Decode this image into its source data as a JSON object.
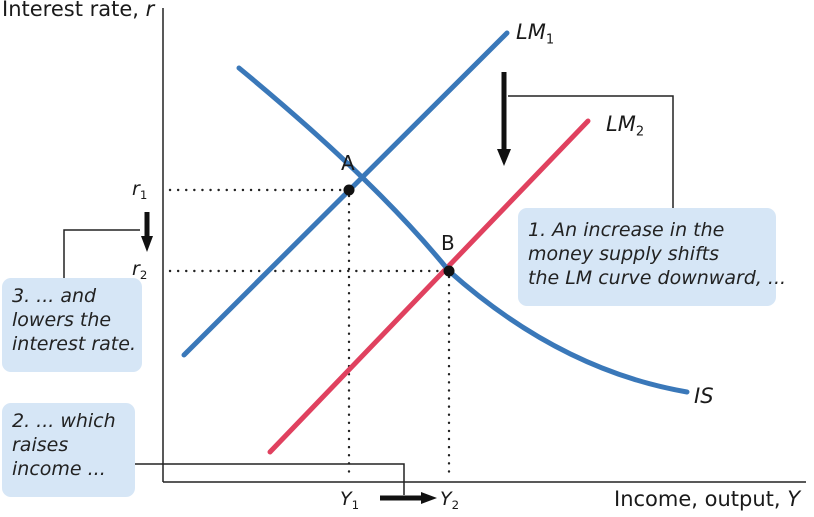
{
  "axes": {
    "y_title": "Interest rate,",
    "y_var": "r",
    "x_title": "Income, output,",
    "x_var": "Y"
  },
  "curves": {
    "lm1": {
      "base": "LM",
      "sub": "1",
      "color": "#3a78b9"
    },
    "lm2": {
      "base": "LM",
      "sub": "2",
      "color": "#e0415f"
    },
    "is": {
      "label": "IS",
      "color": "#3a78b9"
    }
  },
  "points": {
    "a": "A",
    "b": "B"
  },
  "ticks": {
    "r1": {
      "base": "r",
      "sub": "1"
    },
    "r2": {
      "base": "r",
      "sub": "2"
    },
    "y1": {
      "base": "Y",
      "sub": "1"
    },
    "y2": {
      "base": "Y",
      "sub": "2"
    }
  },
  "notes": {
    "note1": [
      "1. An increase in the",
      "money supply shifts",
      "the LM curve downward, ..."
    ],
    "note2": [
      "2. ... which",
      "raises",
      "income ..."
    ],
    "note3": [
      "3. ... and",
      "lowers the",
      "interest rate."
    ]
  },
  "colors": {
    "note_bg": "#d6e6f6",
    "axis": "#222222"
  }
}
